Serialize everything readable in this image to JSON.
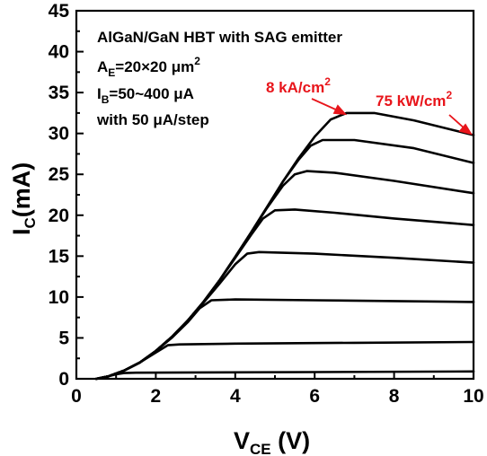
{
  "chart_data": {
    "type": "line",
    "xlabel": {
      "main": "V",
      "sub": "CE",
      "rest": " (V)"
    },
    "ylabel": {
      "main": "I",
      "sub": "C",
      "rest": "(mA)"
    },
    "xlim": [
      0,
      10
    ],
    "ylim": [
      0,
      45
    ],
    "xticks": [
      0,
      2,
      4,
      6,
      8,
      10
    ],
    "yticks": [
      0,
      5,
      10,
      15,
      20,
      25,
      30,
      35,
      40,
      45
    ],
    "grid": false,
    "legend": "none",
    "line_color": "#000000",
    "annotation_color": "#e8151b",
    "annotations": {
      "device": "AlGaN/GaN HBT with SAG emitter",
      "area": {
        "main": "A",
        "sub": "E",
        "mid": "=20×20 μm",
        "sup": "2"
      },
      "ib": {
        "main": "I",
        "sub": "B",
        "rest": "=50~400 μA"
      },
      "step": "with 50 μA/step",
      "current_density": {
        "main": "8 kA/cm",
        "sup": "2"
      },
      "power_density": {
        "main": "75 kW/cm",
        "sup": "2"
      }
    },
    "series": [
      {
        "values": [
          [
            0.5,
            0
          ],
          [
            0.8,
            0.3
          ],
          [
            1.0,
            0.55
          ],
          [
            1.2,
            0.7
          ],
          [
            1.5,
            0.75
          ],
          [
            3,
            0.78
          ],
          [
            6,
            0.82
          ],
          [
            10,
            0.9
          ]
        ]
      },
      {
        "values": [
          [
            0.5,
            0
          ],
          [
            0.8,
            0.3
          ],
          [
            1.2,
            1.0
          ],
          [
            1.6,
            2.0
          ],
          [
            2.0,
            3.2
          ],
          [
            2.3,
            4.1
          ],
          [
            2.6,
            4.2
          ],
          [
            4,
            4.3
          ],
          [
            7,
            4.4
          ],
          [
            10,
            4.5
          ]
        ]
      },
      {
        "values": [
          [
            0.5,
            0
          ],
          [
            0.8,
            0.3
          ],
          [
            1.2,
            1.0
          ],
          [
            1.6,
            2.0
          ],
          [
            2.0,
            3.4
          ],
          [
            2.4,
            5.0
          ],
          [
            2.8,
            6.9
          ],
          [
            3.1,
            8.6
          ],
          [
            3.4,
            9.6
          ],
          [
            4,
            9.7
          ],
          [
            6,
            9.6
          ],
          [
            8,
            9.5
          ],
          [
            10,
            9.4
          ]
        ]
      },
      {
        "values": [
          [
            0.5,
            0
          ],
          [
            0.8,
            0.3
          ],
          [
            1.2,
            1.0
          ],
          [
            1.6,
            2.0
          ],
          [
            2.0,
            3.4
          ],
          [
            2.4,
            5.1
          ],
          [
            2.8,
            7.1
          ],
          [
            3.2,
            9.3
          ],
          [
            3.6,
            11.6
          ],
          [
            4.0,
            14.0
          ],
          [
            4.3,
            15.3
          ],
          [
            4.6,
            15.5
          ],
          [
            6,
            15.3
          ],
          [
            8,
            14.8
          ],
          [
            10,
            14.2
          ]
        ]
      },
      {
        "values": [
          [
            0.5,
            0
          ],
          [
            0.8,
            0.3
          ],
          [
            1.2,
            1.0
          ],
          [
            1.6,
            2.0
          ],
          [
            2.0,
            3.4
          ],
          [
            2.4,
            5.1
          ],
          [
            2.8,
            7.1
          ],
          [
            3.2,
            9.4
          ],
          [
            3.6,
            12.0
          ],
          [
            4.0,
            14.8
          ],
          [
            4.4,
            17.6
          ],
          [
            4.7,
            19.6
          ],
          [
            5.0,
            20.6
          ],
          [
            5.5,
            20.7
          ],
          [
            6.5,
            20.3
          ],
          [
            8,
            19.6
          ],
          [
            10,
            18.8
          ]
        ]
      },
      {
        "values": [
          [
            0.5,
            0
          ],
          [
            0.8,
            0.3
          ],
          [
            1.2,
            1.0
          ],
          [
            1.6,
            2.0
          ],
          [
            2.0,
            3.4
          ],
          [
            2.4,
            5.1
          ],
          [
            2.8,
            7.1
          ],
          [
            3.2,
            9.4
          ],
          [
            3.6,
            12.0
          ],
          [
            4.0,
            14.9
          ],
          [
            4.4,
            17.9
          ],
          [
            4.8,
            20.9
          ],
          [
            5.2,
            23.6
          ],
          [
            5.5,
            25.0
          ],
          [
            5.8,
            25.4
          ],
          [
            6.5,
            25.2
          ],
          [
            8,
            24.2
          ],
          [
            10,
            22.7
          ]
        ]
      },
      {
        "values": [
          [
            0.5,
            0
          ],
          [
            0.8,
            0.3
          ],
          [
            1.2,
            1.0
          ],
          [
            1.6,
            2.0
          ],
          [
            2.0,
            3.4
          ],
          [
            2.4,
            5.1
          ],
          [
            2.8,
            7.1
          ],
          [
            3.2,
            9.4
          ],
          [
            3.6,
            12.0
          ],
          [
            4.0,
            14.9
          ],
          [
            4.4,
            17.9
          ],
          [
            4.8,
            21.0
          ],
          [
            5.2,
            24.1
          ],
          [
            5.6,
            26.8
          ],
          [
            5.9,
            28.5
          ],
          [
            6.2,
            29.2
          ],
          [
            7,
            29.2
          ],
          [
            8.5,
            28.2
          ],
          [
            10,
            26.4
          ]
        ]
      },
      {
        "values": [
          [
            0.5,
            0
          ],
          [
            0.8,
            0.3
          ],
          [
            1.2,
            1.0
          ],
          [
            1.6,
            2.0
          ],
          [
            2.0,
            3.4
          ],
          [
            2.4,
            5.1
          ],
          [
            2.8,
            7.1
          ],
          [
            3.2,
            9.4
          ],
          [
            3.6,
            12.0
          ],
          [
            4.0,
            14.9
          ],
          [
            4.4,
            17.9
          ],
          [
            4.8,
            21.0
          ],
          [
            5.2,
            24.1
          ],
          [
            5.6,
            27.0
          ],
          [
            6.0,
            29.6
          ],
          [
            6.4,
            31.7
          ],
          [
            6.8,
            32.5
          ],
          [
            7.5,
            32.5
          ],
          [
            8.5,
            31.6
          ],
          [
            10,
            29.8
          ]
        ]
      }
    ]
  }
}
